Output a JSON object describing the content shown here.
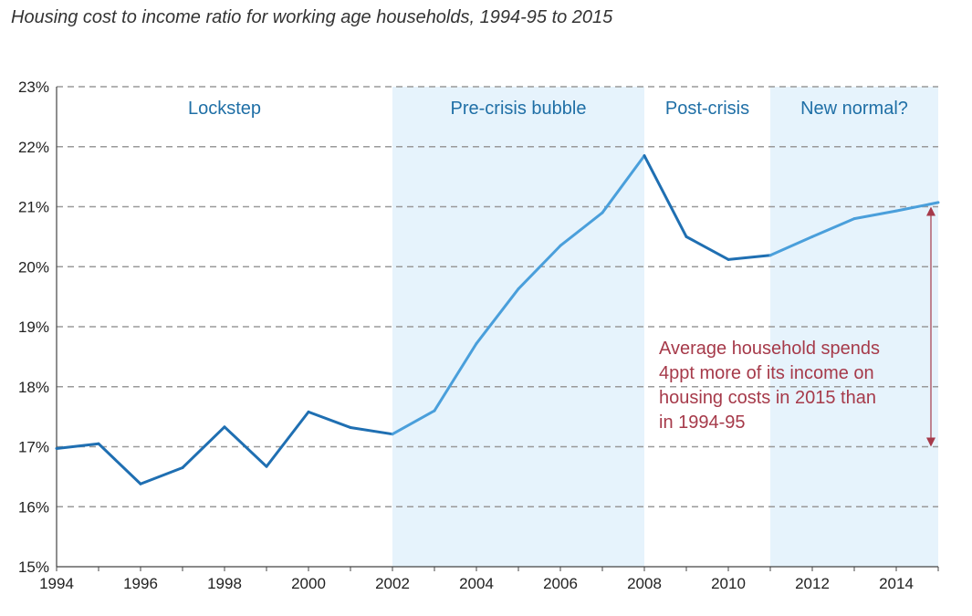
{
  "chart_data": {
    "type": "line",
    "title": "Housing cost to income ratio for working age households, 1994-95 to 2015",
    "xlabel": "",
    "ylabel": "",
    "xlim": [
      1994,
      2015
    ],
    "ylim": [
      15,
      23
    ],
    "grid": true,
    "x_ticks": [
      "1994",
      "1996",
      "1998",
      "2000",
      "2002",
      "2004",
      "2006",
      "2008",
      "2010",
      "2012",
      "2014"
    ],
    "y_ticks": [
      "15%",
      "16%",
      "17%",
      "18%",
      "19%",
      "20%",
      "21%",
      "22%",
      "23%"
    ],
    "series": [
      {
        "x": [
          1994,
          1995,
          1996,
          1997,
          1998,
          1999,
          2000,
          2001,
          2002,
          2003,
          2004,
          2005,
          2006,
          2007,
          2008,
          2009,
          2010,
          2011,
          2012,
          2013,
          2014,
          2015
        ],
        "values": [
          16.97,
          17.05,
          16.38,
          16.65,
          17.33,
          16.67,
          17.58,
          17.32,
          17.21,
          17.6,
          18.72,
          19.63,
          20.35,
          20.9,
          21.85,
          20.5,
          20.12,
          20.19,
          20.5,
          20.8,
          20.93,
          21.07
        ],
        "color_solid": "#1f6fb2",
        "color_light": "#4a9fdb"
      }
    ],
    "regions": [
      {
        "label": "Lockstep",
        "x_start": 1994,
        "x_end": 2002,
        "shaded": false
      },
      {
        "label": "Pre-crisis bubble",
        "x_start": 2002,
        "x_end": 2008,
        "shaded": true
      },
      {
        "label": "Post-crisis",
        "x_start": 2008,
        "x_end": 2011,
        "shaded": false
      },
      {
        "label": "New normal?",
        "x_start": 2011,
        "x_end": 2015,
        "shaded": true
      }
    ],
    "shade_color": "#e6f3fc",
    "annotation": {
      "lines": [
        "Average household spends",
        "4ppt more of its income on",
        "housing costs in 2015 than",
        "in 1994-95"
      ],
      "color": "#a63a4a",
      "arrow_x": 2015,
      "arrow_from": 17,
      "arrow_to": 21
    }
  }
}
